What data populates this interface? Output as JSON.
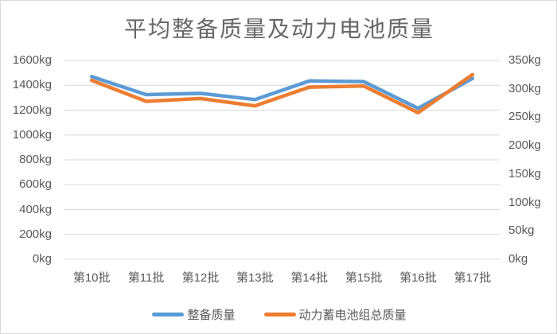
{
  "chart_data": {
    "type": "line",
    "title": "平均整备质量及动力电池质量",
    "categories": [
      "第10批",
      "第11批",
      "第12批",
      "第13批",
      "第14批",
      "第15批",
      "第16批",
      "第17批"
    ],
    "series": [
      {
        "name": "整备质量",
        "axis": "left",
        "color": "#5B9BD5",
        "values": [
          1470,
          1325,
          1335,
          1285,
          1435,
          1430,
          1215,
          1455
        ]
      },
      {
        "name": "动力蓄电池组总质量",
        "axis": "right",
        "color": "#ED7D31",
        "values": [
          315,
          278,
          283,
          270,
          303,
          305,
          258,
          325
        ]
      }
    ],
    "left_axis": {
      "min": 0,
      "max": 1600,
      "step": 200,
      "ticks": [
        "0kg",
        "200kg",
        "400kg",
        "600kg",
        "800kg",
        "1000kg",
        "1200kg",
        "1400kg",
        "1600kg"
      ]
    },
    "right_axis": {
      "min": 0,
      "max": 350,
      "step": 50,
      "ticks": [
        "0kg",
        "50kg",
        "100kg",
        "150kg",
        "200kg",
        "250kg",
        "300kg",
        "350kg"
      ]
    },
    "grid": true,
    "legend_position": "bottom",
    "colors": {
      "grid": "#D9D9D9",
      "text": "#595959",
      "title": "#686868"
    }
  }
}
